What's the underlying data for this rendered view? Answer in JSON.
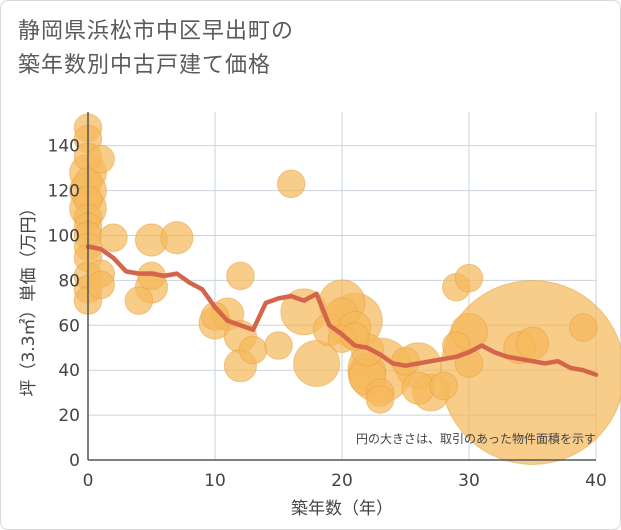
{
  "title": {
    "line1": "静岡県浜松市中区早出町の",
    "line2": "築年数別中古戸建て価格"
  },
  "chart_data": {
    "type": "scatter",
    "xlabel": "築年数（年）",
    "ylabel": "坪（3.3㎡）単価（万円）",
    "xlim": [
      0,
      40
    ],
    "ylim": [
      0,
      155
    ],
    "xticks": [
      0,
      10,
      20,
      30,
      40
    ],
    "yticks": [
      0,
      20,
      40,
      60,
      80,
      100,
      120,
      140
    ],
    "grid": true,
    "note": "円の大きさは、取引のあった物件面積を示す",
    "colors": {
      "bubble": "#f5b85c",
      "trend": "#d4644a",
      "grid": "#c9d3de"
    },
    "bubbles": [
      {
        "x": 0,
        "y": 148,
        "size": 3
      },
      {
        "x": 0,
        "y": 143,
        "size": 3
      },
      {
        "x": 0,
        "y": 135,
        "size": 3
      },
      {
        "x": 0,
        "y": 128,
        "size": 4
      },
      {
        "x": 0,
        "y": 124,
        "size": 3
      },
      {
        "x": 0,
        "y": 120,
        "size": 4
      },
      {
        "x": 0,
        "y": 116,
        "size": 3
      },
      {
        "x": 0,
        "y": 112,
        "size": 4
      },
      {
        "x": 0,
        "y": 108,
        "size": 3
      },
      {
        "x": 0,
        "y": 104,
        "size": 3
      },
      {
        "x": 0,
        "y": 100,
        "size": 3
      },
      {
        "x": 0,
        "y": 95,
        "size": 3
      },
      {
        "x": 0,
        "y": 90,
        "size": 3
      },
      {
        "x": 0,
        "y": 82,
        "size": 3
      },
      {
        "x": 0,
        "y": 76,
        "size": 3
      },
      {
        "x": 0,
        "y": 71,
        "size": 3
      },
      {
        "x": 1,
        "y": 134,
        "size": 3
      },
      {
        "x": 1,
        "y": 83,
        "size": 3
      },
      {
        "x": 1,
        "y": 78,
        "size": 3
      },
      {
        "x": 2,
        "y": 99,
        "size": 3
      },
      {
        "x": 4,
        "y": 71,
        "size": 3
      },
      {
        "x": 5,
        "y": 98,
        "size": 3.5
      },
      {
        "x": 5,
        "y": 82,
        "size": 3
      },
      {
        "x": 5,
        "y": 77,
        "size": 3.5
      },
      {
        "x": 7,
        "y": 99,
        "size": 3.5
      },
      {
        "x": 10,
        "y": 64,
        "size": 3
      },
      {
        "x": 10,
        "y": 61,
        "size": 3.5
      },
      {
        "x": 11,
        "y": 65,
        "size": 3.5
      },
      {
        "x": 12,
        "y": 82,
        "size": 3
      },
      {
        "x": 12,
        "y": 55,
        "size": 3.5
      },
      {
        "x": 12,
        "y": 42,
        "size": 3.5
      },
      {
        "x": 13,
        "y": 49,
        "size": 3
      },
      {
        "x": 15,
        "y": 51,
        "size": 3
      },
      {
        "x": 16,
        "y": 123,
        "size": 3
      },
      {
        "x": 17,
        "y": 66,
        "size": 5
      },
      {
        "x": 18,
        "y": 43,
        "size": 5
      },
      {
        "x": 19,
        "y": 58,
        "size": 3.5
      },
      {
        "x": 20,
        "y": 70,
        "size": 5
      },
      {
        "x": 20,
        "y": 65,
        "size": 3.5
      },
      {
        "x": 20,
        "y": 54,
        "size": 3
      },
      {
        "x": 21,
        "y": 62,
        "size": 6
      },
      {
        "x": 21,
        "y": 59,
        "size": 3.5
      },
      {
        "x": 21,
        "y": 55,
        "size": 3
      },
      {
        "x": 22,
        "y": 49,
        "size": 3.5
      },
      {
        "x": 22,
        "y": 39,
        "size": 4
      },
      {
        "x": 22,
        "y": 37,
        "size": 4
      },
      {
        "x": 23,
        "y": 40,
        "size": 7
      },
      {
        "x": 23,
        "y": 30,
        "size": 3
      },
      {
        "x": 23,
        "y": 27,
        "size": 3
      },
      {
        "x": 25,
        "y": 44,
        "size": 3
      },
      {
        "x": 26,
        "y": 42,
        "size": 5
      },
      {
        "x": 26,
        "y": 32,
        "size": 3.5
      },
      {
        "x": 27,
        "y": 30,
        "size": 4
      },
      {
        "x": 28,
        "y": 33,
        "size": 3
      },
      {
        "x": 29,
        "y": 77,
        "size": 3
      },
      {
        "x": 29,
        "y": 51,
        "size": 3
      },
      {
        "x": 30,
        "y": 81,
        "size": 3
      },
      {
        "x": 30,
        "y": 57,
        "size": 4
      },
      {
        "x": 30,
        "y": 43,
        "size": 3
      },
      {
        "x": 34,
        "y": 50,
        "size": 3.5
      },
      {
        "x": 35,
        "y": 52,
        "size": 3.5
      },
      {
        "x": 35,
        "y": 39,
        "size": 20
      },
      {
        "x": 39,
        "y": 59,
        "size": 3
      }
    ],
    "trend": {
      "x": [
        0,
        1,
        2,
        3,
        4,
        5,
        6,
        7,
        8,
        9,
        10,
        11,
        12,
        13,
        14,
        15,
        16,
        17,
        18,
        19,
        20,
        21,
        22,
        23,
        24,
        25,
        26,
        27,
        28,
        29,
        30,
        31,
        32,
        33,
        34,
        35,
        36,
        37,
        38,
        39,
        40
      ],
      "y": [
        95,
        94,
        90,
        84,
        83,
        83,
        82,
        83,
        79,
        76,
        68,
        62,
        60,
        58,
        70,
        72,
        73,
        71,
        74,
        60,
        56,
        51,
        50,
        47,
        43,
        42,
        43,
        44,
        45,
        46,
        48,
        51,
        48,
        46,
        45,
        44,
        43,
        44,
        41,
        40,
        38
      ]
    }
  }
}
